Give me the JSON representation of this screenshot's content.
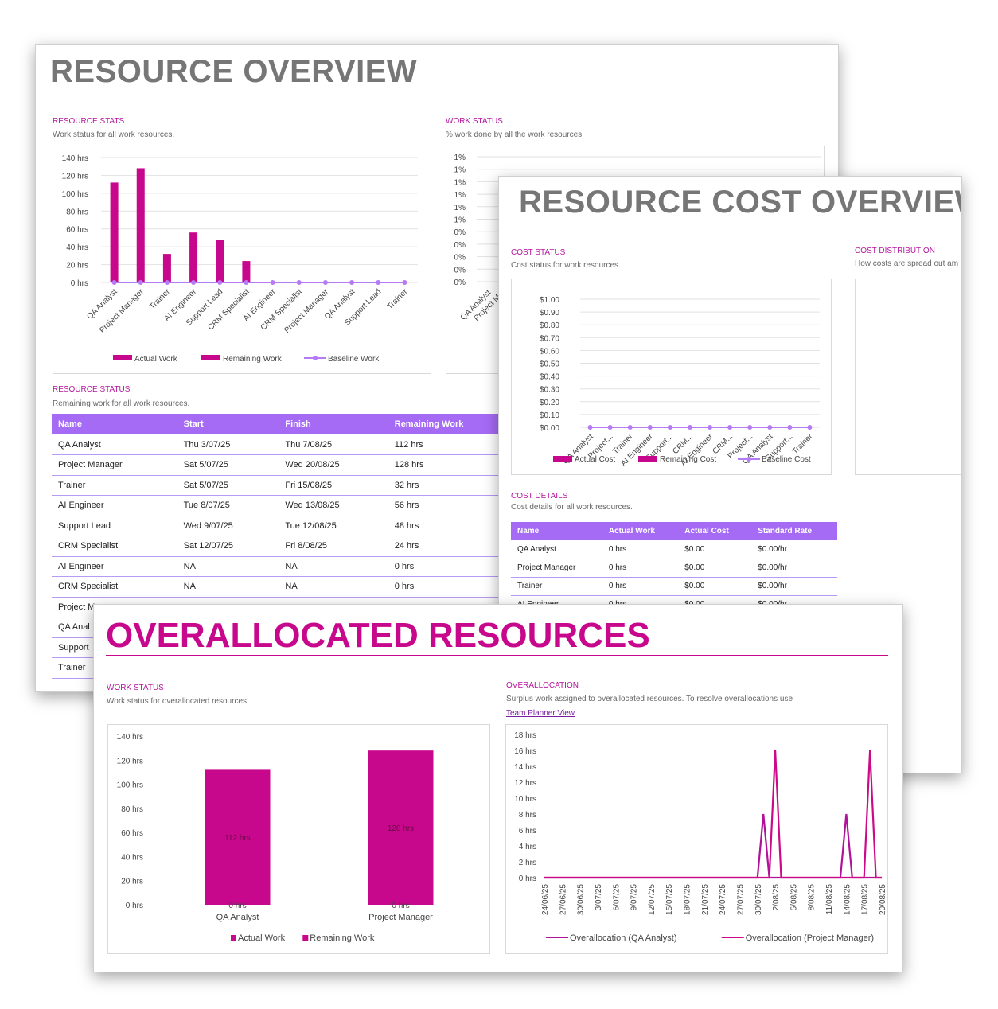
{
  "colors": {
    "accent": "#c8088c",
    "purple": "#a66bf5",
    "line": "#b57bf5"
  },
  "sheet1": {
    "title": "RESOURCE OVERVIEW",
    "stats": {
      "heading": "RESOURCE STATS",
      "subtitle": "Work status for all work resources."
    },
    "work_status": {
      "heading": "WORK STATUS",
      "subtitle": "% work done by all the work resources.",
      "ticks": [
        "1%",
        "1%",
        "1%",
        "1%",
        "1%",
        "1%",
        "0%",
        "0%",
        "0%",
        "0%",
        "0%"
      ],
      "xlabels": [
        "QA Analyst",
        "Project M..."
      ]
    },
    "status": {
      "heading": "RESOURCE STATUS",
      "subtitle": "Remaining work for all work resources.",
      "columns": [
        "Name",
        "Start",
        "Finish",
        "Remaining Work"
      ],
      "rows": [
        [
          "QA Analyst",
          "Thu 3/07/25",
          "Thu 7/08/25",
          "112 hrs"
        ],
        [
          "Project Manager",
          "Sat 5/07/25",
          "Wed 20/08/25",
          "128 hrs"
        ],
        [
          "Trainer",
          "Sat 5/07/25",
          "Fri 15/08/25",
          "32 hrs"
        ],
        [
          "AI Engineer",
          "Tue 8/07/25",
          "Wed 13/08/25",
          "56 hrs"
        ],
        [
          "Support Lead",
          "Wed 9/07/25",
          "Tue 12/08/25",
          "48 hrs"
        ],
        [
          "CRM Specialist",
          "Sat 12/07/25",
          "Fri 8/08/25",
          "24 hrs"
        ],
        [
          "AI Engineer",
          "NA",
          "NA",
          "0 hrs"
        ],
        [
          "CRM Specialist",
          "NA",
          "NA",
          "0 hrs"
        ],
        [
          "Project M",
          "",
          "",
          ""
        ],
        [
          "QA Anal",
          "",
          "",
          ""
        ],
        [
          "Support",
          "",
          "",
          ""
        ],
        [
          "Trainer",
          "",
          "",
          ""
        ]
      ]
    }
  },
  "sheet2": {
    "title": "RESOURCE COST OVERVIEW",
    "cost_status": {
      "heading": "COST STATUS",
      "subtitle": "Cost status for work resources."
    },
    "cost_dist": {
      "heading": "COST DISTRIBUTION",
      "subtitle": "How costs are spread out am"
    },
    "cost_details": {
      "heading": "COST DETAILS",
      "subtitle": "Cost details for all work resources.",
      "columns": [
        "Name",
        "Actual Work",
        "Actual Cost",
        "Standard Rate"
      ],
      "rows": [
        [
          "QA Analyst",
          "0 hrs",
          "$0.00",
          "$0.00/hr"
        ],
        [
          "Project Manager",
          "0 hrs",
          "$0.00",
          "$0.00/hr"
        ],
        [
          "Trainer",
          "0 hrs",
          "$0.00",
          "$0.00/hr"
        ],
        [
          "AI Engineer",
          "0 hrs",
          "$0.00",
          "$0.00/hr"
        ]
      ]
    }
  },
  "sheet3": {
    "title": "OVERALLOCATED RESOURCES",
    "work_status": {
      "heading": "WORK STATUS",
      "subtitle": "Work status for overallocated resources."
    },
    "overallocation": {
      "heading": "OVERALLOCATION",
      "subtitle": "Surplus work assigned to overallocated resources. To resolve overallocations use",
      "link": "Team Planner View"
    }
  },
  "chart_data": [
    {
      "type": "bar",
      "title": "",
      "categories": [
        "QA Analyst",
        "Project Manager",
        "Trainer",
        "AI Engineer",
        "Support Lead",
        "CRM Specialist",
        "AI Engineer",
        "CRM Specialist",
        "Project Manager",
        "QA Analyst",
        "Support Lead",
        "Trainer"
      ],
      "series": [
        {
          "name": "Actual Work",
          "values": [
            0,
            0,
            0,
            0,
            0,
            0,
            0,
            0,
            0,
            0,
            0,
            0
          ]
        },
        {
          "name": "Remaining Work",
          "values": [
            112,
            128,
            32,
            56,
            48,
            24,
            0,
            0,
            0,
            0,
            0,
            0
          ]
        },
        {
          "name": "Baseline Work",
          "values": [
            0,
            0,
            0,
            0,
            0,
            0,
            0,
            0,
            0,
            0,
            0,
            0
          ]
        }
      ],
      "yticks": [
        "0 hrs",
        "20 hrs",
        "40 hrs",
        "60 hrs",
        "80 hrs",
        "100 hrs",
        "120 hrs",
        "140 hrs"
      ],
      "ylim": [
        0,
        140
      ],
      "grid": true,
      "legend": "bottom"
    },
    {
      "type": "line",
      "title": "",
      "categories": [
        "QA Analyst",
        "Project...",
        "Trainer",
        "AI Engineer",
        "Support...",
        "CRM...",
        "AI Engineer",
        "CRM...",
        "Project...",
        "QA Analyst",
        "Support...",
        "Trainer"
      ],
      "series": [
        {
          "name": "Actual Cost",
          "values": [
            0,
            0,
            0,
            0,
            0,
            0,
            0,
            0,
            0,
            0,
            0,
            0
          ]
        },
        {
          "name": "Remaining Cost",
          "values": [
            0,
            0,
            0,
            0,
            0,
            0,
            0,
            0,
            0,
            0,
            0,
            0
          ]
        },
        {
          "name": "Baseline Cost",
          "values": [
            0,
            0,
            0,
            0,
            0,
            0,
            0,
            0,
            0,
            0,
            0,
            0
          ]
        }
      ],
      "yticks": [
        "$0.00",
        "$0.10",
        "$0.20",
        "$0.30",
        "$0.40",
        "$0.50",
        "$0.60",
        "$0.70",
        "$0.80",
        "$0.90",
        "$1.00"
      ],
      "ylim": [
        0,
        1
      ],
      "grid": true,
      "legend": "bottom"
    },
    {
      "type": "bar",
      "title": "",
      "categories": [
        "QA Analyst",
        "Project Manager"
      ],
      "series": [
        {
          "name": "Actual Work",
          "values": [
            0,
            0
          ]
        },
        {
          "name": "Remaining Work",
          "values": [
            112,
            128
          ]
        }
      ],
      "data_labels": [
        [
          "0 hrs",
          "0 hrs"
        ],
        [
          "112 hrs",
          "128 hrs"
        ]
      ],
      "yticks": [
        "0 hrs",
        "20 hrs",
        "40 hrs",
        "60 hrs",
        "80 hrs",
        "100 hrs",
        "120 hrs",
        "140 hrs"
      ],
      "ylim": [
        0,
        140
      ],
      "legend": "bottom"
    },
    {
      "type": "line",
      "title": "",
      "x": [
        "24/06/25",
        "27/06/25",
        "30/06/25",
        "3/07/25",
        "6/07/25",
        "9/07/25",
        "12/07/25",
        "15/07/25",
        "18/07/25",
        "21/07/25",
        "24/07/25",
        "27/07/25",
        "30/07/25",
        "2/08/25",
        "5/08/25",
        "8/08/25",
        "11/08/25",
        "14/08/25",
        "17/08/25",
        "20/08/25"
      ],
      "series": [
        {
          "name": "Overallocation (QA Analyst)",
          "points": [
            [
              0,
              0
            ],
            [
              36,
              0
            ],
            [
              37,
              8
            ],
            [
              38,
              0
            ],
            [
              50,
              0
            ],
            [
              51,
              8
            ],
            [
              52,
              0
            ],
            [
              57,
              0
            ]
          ]
        },
        {
          "name": "Overallocation (Project Manager)",
          "points": [
            [
              0,
              0
            ],
            [
              38,
              0
            ],
            [
              39,
              16
            ],
            [
              40,
              0
            ],
            [
              54,
              0
            ],
            [
              55,
              16
            ],
            [
              56,
              0
            ],
            [
              57,
              0
            ]
          ]
        }
      ],
      "yticks": [
        "0 hrs",
        "2 hrs",
        "4 hrs",
        "6 hrs",
        "8 hrs",
        "10 hrs",
        "12 hrs",
        "14 hrs",
        "16 hrs",
        "18 hrs"
      ],
      "ylim": [
        0,
        18
      ],
      "legend": "bottom"
    }
  ]
}
